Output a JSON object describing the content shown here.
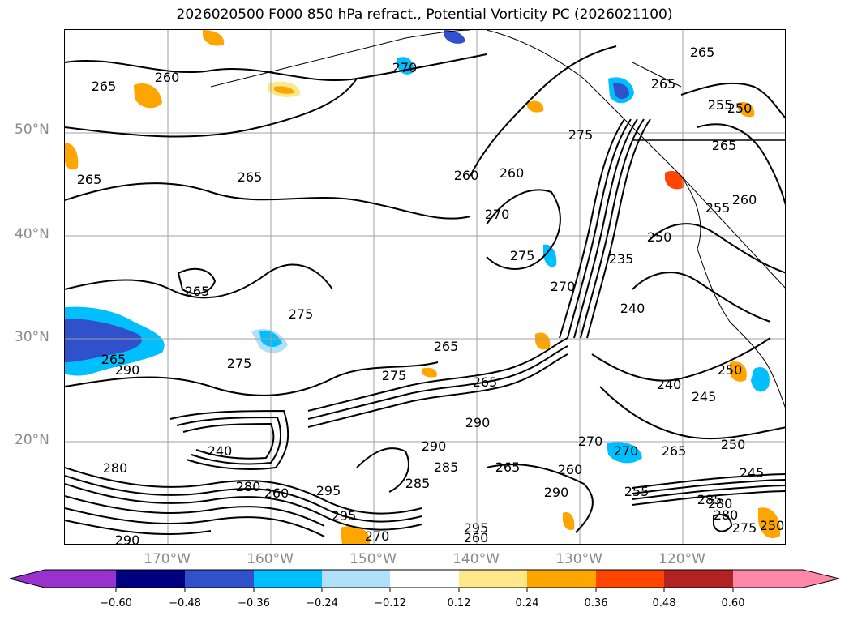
{
  "title": "2026020500 F000 850 hPa refract., Potential Vorticity PC (2026021100)",
  "latitude_labels": [
    "50°N",
    "40°N",
    "30°N",
    "20°N"
  ],
  "longitude_labels": [
    "170°W",
    "160°W",
    "150°W",
    "140°W",
    "130°W",
    "120°W"
  ],
  "contour_labels": [
    "265",
    "260",
    "265",
    "270",
    "265",
    "260",
    "260",
    "265",
    "275",
    "265",
    "265",
    "255",
    "250",
    "265",
    "260",
    "255",
    "270",
    "275",
    "270",
    "265",
    "235",
    "250",
    "240",
    "275",
    "265",
    "275",
    "290",
    "265",
    "275",
    "240",
    "290",
    "285",
    "290",
    "250",
    "245",
    "290",
    "285",
    "280",
    "270",
    "260",
    "265",
    "270",
    "295",
    "295",
    "295",
    "270",
    "260",
    "280",
    "275",
    "250",
    "245",
    "285",
    "280",
    "260",
    "280",
    "255",
    "265",
    "250",
    "240",
    "290"
  ],
  "colorbar": {
    "colors": [
      "#9932cc",
      "#000080",
      "#3050cc",
      "#00bfff",
      "#b0e0fa",
      "#ffffff",
      "#ffe88a",
      "#ffa500",
      "#ff4500",
      "#b22222",
      "#ff88aa"
    ],
    "ticks": [
      "−0.60",
      "−0.48",
      "−0.36",
      "−0.24",
      "−0.12",
      "0.12",
      "0.24",
      "0.36",
      "0.48",
      "0.60"
    ]
  },
  "style": {
    "grid_color": "#a0a0a0",
    "label_color": "#8a8a8a"
  }
}
